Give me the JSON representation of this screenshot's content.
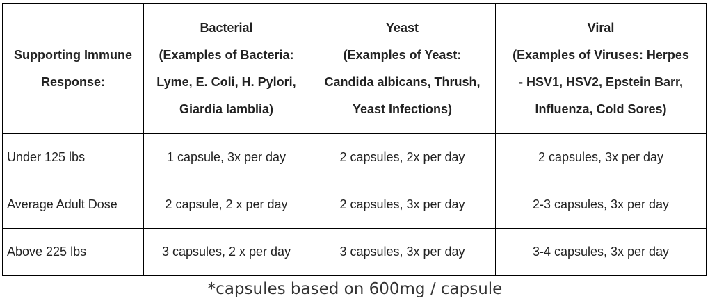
{
  "table": {
    "header": {
      "row_head": [
        "Supporting Immune",
        "Response:"
      ],
      "columns": [
        {
          "title": "Bacterial",
          "lines": [
            "(Examples of Bacteria:",
            "Lyme, E. Coli, H. Pylori,",
            "Giardia lamblia)"
          ]
        },
        {
          "title": "Yeast",
          "lines": [
            "(Examples of Yeast:",
            "Candida albicans, Thrush,",
            "Yeast Infections)"
          ]
        },
        {
          "title": "Viral",
          "lines": [
            "(Examples of Viruses: Herpes",
            "- HSV1, HSV2, Epstein Barr,",
            "Influenza, Cold Sores)"
          ]
        }
      ]
    },
    "rows": [
      {
        "label": "Under 125 lbs",
        "cells": [
          "1 capsule, 3x per day",
          "2 capsules, 2x per day",
          "2 capsules, 3x per day"
        ]
      },
      {
        "label": "Average Adult Dose",
        "cells": [
          "2 capsule, 2 x per day",
          "2 capsules, 3x per day",
          "2-3 capsules, 3x per day"
        ]
      },
      {
        "label": "Above 225 lbs",
        "cells": [
          "3 capsules, 2 x per day",
          "3 capsules, 3x per day",
          "3-4 capsules, 3x per day"
        ]
      }
    ]
  },
  "footnote": "*capsules based on 600mg / capsule"
}
